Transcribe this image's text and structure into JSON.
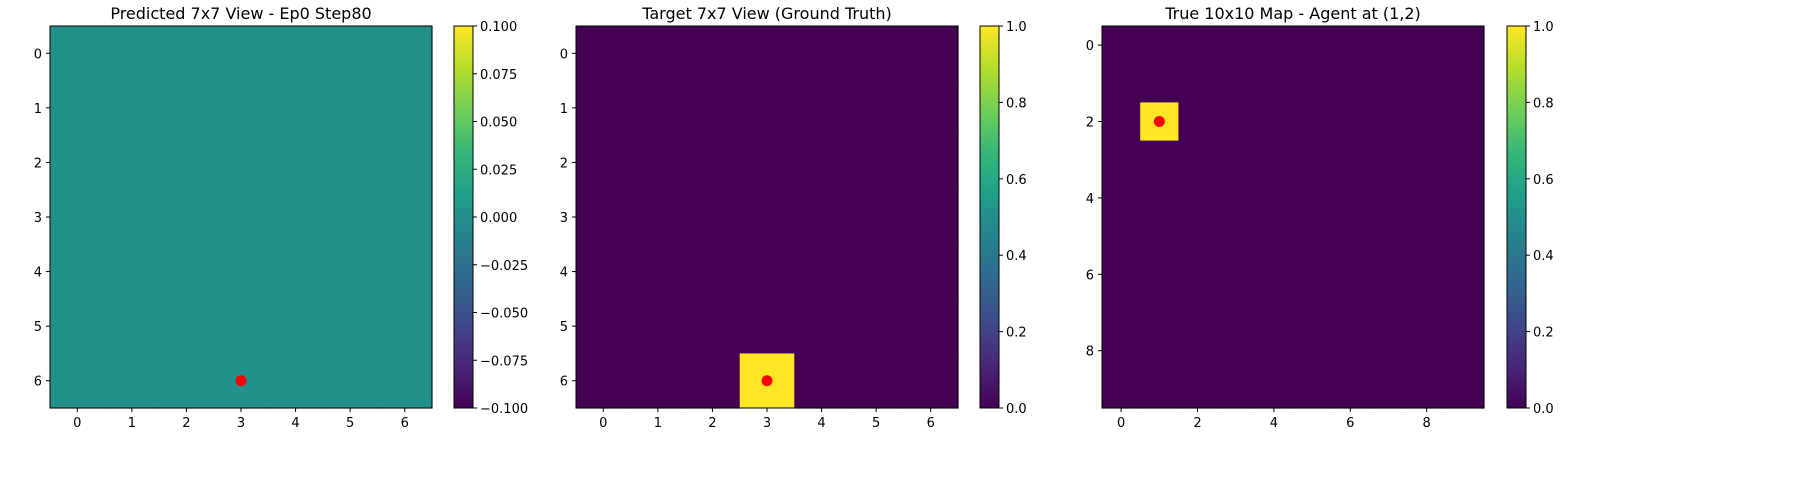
{
  "chart_data": [
    {
      "type": "heatmap",
      "title": "Predicted 7x7 View - Ep0 Step80",
      "grid_size": [
        7,
        7
      ],
      "values": [
        [
          0,
          0,
          0,
          0,
          0,
          0,
          0
        ],
        [
          0,
          0,
          0,
          0,
          0,
          0,
          0
        ],
        [
          0,
          0,
          0,
          0,
          0,
          0,
          0
        ],
        [
          0,
          0,
          0,
          0,
          0,
          0,
          0
        ],
        [
          0,
          0,
          0,
          0,
          0,
          0,
          0
        ],
        [
          0,
          0,
          0,
          0,
          0,
          0,
          0
        ],
        [
          0,
          0,
          0,
          0,
          0,
          0,
          0
        ]
      ],
      "xticks": [
        0,
        1,
        2,
        3,
        4,
        5,
        6
      ],
      "yticks": [
        0,
        1,
        2,
        3,
        4,
        5,
        6
      ],
      "vmin": -0.1,
      "vmax": 0.1,
      "colorbar_ticks": [
        -0.1,
        -0.075,
        -0.05,
        -0.025,
        0.0,
        0.025,
        0.05,
        0.075,
        0.1
      ],
      "colorbar_tick_labels": [
        "−0.100",
        "−0.075",
        "−0.050",
        "−0.025",
        "0.000",
        "0.025",
        "0.050",
        "0.075",
        "0.100"
      ],
      "colormap": "viridis",
      "marker": {
        "x": 3,
        "y": 6,
        "color": "#ff0000"
      }
    },
    {
      "type": "heatmap",
      "title": "Target 7x7 View (Ground Truth)",
      "grid_size": [
        7,
        7
      ],
      "values": [
        [
          0,
          0,
          0,
          0,
          0,
          0,
          0
        ],
        [
          0,
          0,
          0,
          0,
          0,
          0,
          0
        ],
        [
          0,
          0,
          0,
          0,
          0,
          0,
          0
        ],
        [
          0,
          0,
          0,
          0,
          0,
          0,
          0
        ],
        [
          0,
          0,
          0,
          0,
          0,
          0,
          0
        ],
        [
          0,
          0,
          0,
          0,
          0,
          0,
          0
        ],
        [
          0,
          0,
          0,
          1,
          0,
          0,
          0
        ]
      ],
      "xticks": [
        0,
        1,
        2,
        3,
        4,
        5,
        6
      ],
      "yticks": [
        0,
        1,
        2,
        3,
        4,
        5,
        6
      ],
      "vmin": 0,
      "vmax": 1,
      "colorbar_ticks": [
        0,
        0.2,
        0.4,
        0.6,
        0.8,
        1.0
      ],
      "colorbar_tick_labels": [
        "0.0",
        "0.2",
        "0.4",
        "0.6",
        "0.8",
        "1.0"
      ],
      "colormap": "viridis",
      "marker": {
        "x": 3,
        "y": 6,
        "color": "#ff0000"
      }
    },
    {
      "type": "heatmap",
      "title": "True 10x10 Map - Agent at (1,2)",
      "grid_size": [
        10,
        10
      ],
      "values": [
        [
          0,
          0,
          0,
          0,
          0,
          0,
          0,
          0,
          0,
          0
        ],
        [
          0,
          0,
          0,
          0,
          0,
          0,
          0,
          0,
          0,
          0
        ],
        [
          0,
          1,
          0,
          0,
          0,
          0,
          0,
          0,
          0,
          0
        ],
        [
          0,
          0,
          0,
          0,
          0,
          0,
          0,
          0,
          0,
          0
        ],
        [
          0,
          0,
          0,
          0,
          0,
          0,
          0,
          0,
          0,
          0
        ],
        [
          0,
          0,
          0,
          0,
          0,
          0,
          0,
          0,
          0,
          0
        ],
        [
          0,
          0,
          0,
          0,
          0,
          0,
          0,
          0,
          0,
          0
        ],
        [
          0,
          0,
          0,
          0,
          0,
          0,
          0,
          0,
          0,
          0
        ],
        [
          0,
          0,
          0,
          0,
          0,
          0,
          0,
          0,
          0,
          0
        ],
        [
          0,
          0,
          0,
          0,
          0,
          0,
          0,
          0,
          0,
          0
        ]
      ],
      "xticks": [
        0,
        2,
        4,
        6,
        8
      ],
      "yticks": [
        0,
        2,
        4,
        6,
        8
      ],
      "vmin": 0,
      "vmax": 1,
      "colorbar_ticks": [
        0,
        0.2,
        0.4,
        0.6,
        0.8,
        1.0
      ],
      "colorbar_tick_labels": [
        "0.0",
        "0.2",
        "0.4",
        "0.6",
        "0.8",
        "1.0"
      ],
      "colormap": "viridis",
      "marker": {
        "x": 1,
        "y": 2,
        "color": "#ff0000"
      }
    }
  ]
}
